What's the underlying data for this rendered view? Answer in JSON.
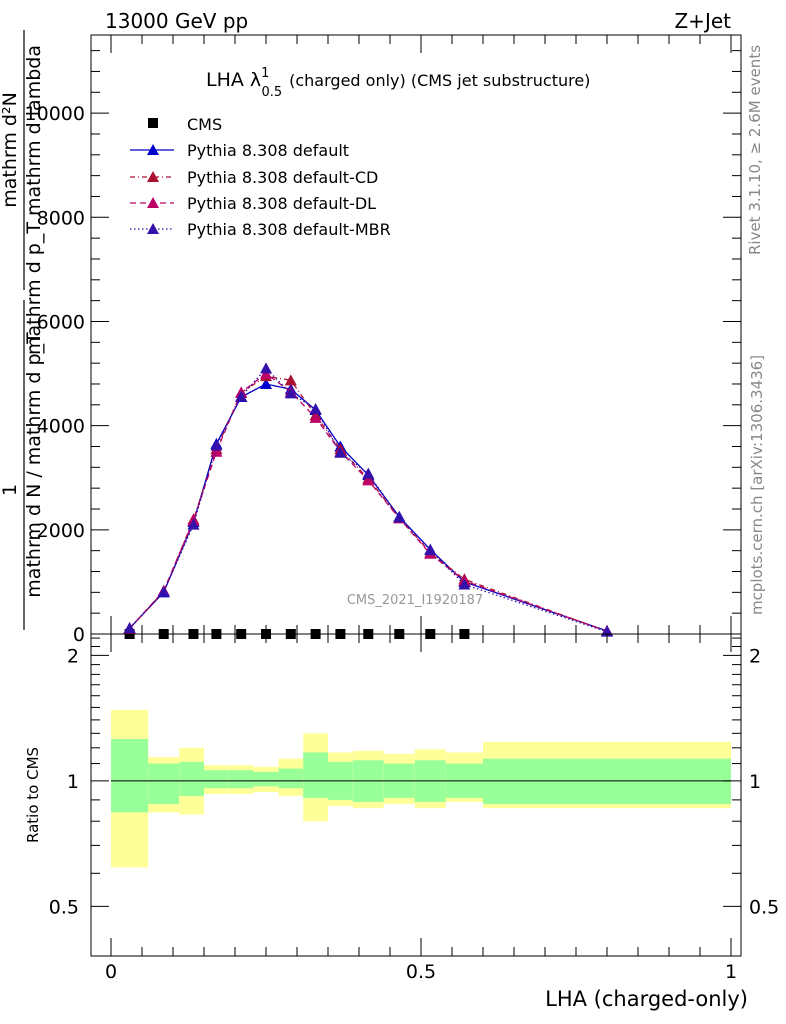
{
  "header": {
    "left": "13000 GeV pp",
    "right": "Z+Jet",
    "title_main": "LHA λ",
    "title_sup": "1",
    "title_sub": "0.5",
    "title_rest": "(charged only) (CMS jet substructure)",
    "watermark": "CMS_2021_I1920187",
    "side_top": "Rivet 3.1.10, ≥ 2.6M events",
    "side_bottom": "mcplots.cern.ch [arXiv:1306.3436]"
  },
  "axes": {
    "ylabel_top_numer": "mathrm d²N",
    "ylabel_top_denom": "mathrm d p_T mathrm d lambda",
    "ylabel_top_prefix_numer": "1",
    "ylabel_top_prefix_denom": "mathrm d N / mathrm d p_T",
    "ylabel_bottom": "Ratio to CMS",
    "xlabel": "LHA (charged-only)"
  },
  "colors": {
    "default": "#0000cc",
    "cd": "#aa1133",
    "dl": "#bb0066",
    "mbr": "#3311aa",
    "band_inner": "#99ff99",
    "band_outer": "#ffff99"
  },
  "legend": [
    {
      "label": "CMS"
    },
    {
      "label": "Pythia 8.308 default"
    },
    {
      "label": "Pythia 8.308 default-CD"
    },
    {
      "label": "Pythia 8.308 default-DL"
    },
    {
      "label": "Pythia 8.308 default-MBR"
    }
  ],
  "chart_data": [
    {
      "type": "line",
      "xlim": [
        0,
        1
      ],
      "ylim": [
        0,
        11500
      ],
      "yticks": [
        0,
        2000,
        4000,
        6000,
        8000,
        10000
      ],
      "ytick_labels": [
        "0",
        "2000",
        "4000",
        "6000",
        "8000",
        "10000"
      ],
      "x": [
        0.03,
        0.085,
        0.133,
        0.17,
        0.21,
        0.25,
        0.29,
        0.33,
        0.37,
        0.415,
        0.465,
        0.515,
        0.57,
        0.8
      ],
      "series": [
        {
          "name": "CMS",
          "values": [
            0,
            0,
            0,
            0,
            0,
            0,
            0,
            0,
            0,
            0,
            0,
            0,
            0,
            null
          ]
        },
        {
          "name": "Pythia 8.308 default",
          "values": [
            110,
            800,
            2150,
            3650,
            4550,
            4800,
            4700,
            4300,
            3600,
            3050,
            2250,
            1620,
            1000,
            60
          ]
        },
        {
          "name": "Pythia 8.308 default-CD",
          "values": [
            100,
            820,
            2200,
            3550,
            4630,
            4950,
            4870,
            4200,
            3550,
            2980,
            2230,
            1560,
            1050,
            50
          ]
        },
        {
          "name": "Pythia 8.308 default-DL",
          "values": [
            105,
            830,
            2180,
            3500,
            4640,
            5000,
            4650,
            4150,
            3500,
            2950,
            2220,
            1540,
            1020,
            55
          ]
        },
        {
          "name": "Pythia 8.308 default-MBR",
          "values": [
            115,
            810,
            2100,
            3620,
            4560,
            5100,
            4620,
            4320,
            3480,
            3080,
            2240,
            1610,
            950,
            45
          ]
        }
      ]
    },
    {
      "type": "area",
      "xlim": [
        0,
        1
      ],
      "ylim": [
        0.38,
        2.25
      ],
      "yticks": [
        0.5,
        1,
        2
      ],
      "ytick_labels": [
        "0.5",
        "1",
        "2"
      ],
      "xticks": [
        0,
        0.5,
        1
      ],
      "xtick_labels": [
        "0",
        "0.5",
        "1"
      ],
      "bins": [
        [
          0.0,
          0.06
        ],
        [
          0.06,
          0.11
        ],
        [
          0.11,
          0.15
        ],
        [
          0.15,
          0.19
        ],
        [
          0.19,
          0.23
        ],
        [
          0.23,
          0.27
        ],
        [
          0.27,
          0.31
        ],
        [
          0.31,
          0.35
        ],
        [
          0.35,
          0.39
        ],
        [
          0.39,
          0.44
        ],
        [
          0.44,
          0.49
        ],
        [
          0.49,
          0.54
        ],
        [
          0.54,
          0.6
        ],
        [
          0.6,
          1.0
        ]
      ],
      "inner_band": [
        [
          0.84,
          1.26
        ],
        [
          0.88,
          1.1
        ],
        [
          0.92,
          1.11
        ],
        [
          0.96,
          1.06
        ],
        [
          0.96,
          1.06
        ],
        [
          0.97,
          1.05
        ],
        [
          0.96,
          1.07
        ],
        [
          0.91,
          1.17
        ],
        [
          0.9,
          1.11
        ],
        [
          0.89,
          1.12
        ],
        [
          0.91,
          1.1
        ],
        [
          0.89,
          1.12
        ],
        [
          0.91,
          1.1
        ],
        [
          0.88,
          1.13
        ]
      ],
      "outer_band": [
        [
          0.62,
          1.48
        ],
        [
          0.84,
          1.14
        ],
        [
          0.83,
          1.2
        ],
        [
          0.93,
          1.09
        ],
        [
          0.93,
          1.09
        ],
        [
          0.94,
          1.08
        ],
        [
          0.92,
          1.13
        ],
        [
          0.8,
          1.3
        ],
        [
          0.87,
          1.17
        ],
        [
          0.86,
          1.18
        ],
        [
          0.88,
          1.16
        ],
        [
          0.86,
          1.19
        ],
        [
          0.89,
          1.17
        ],
        [
          0.86,
          1.24
        ]
      ],
      "reference_line": 1
    }
  ]
}
